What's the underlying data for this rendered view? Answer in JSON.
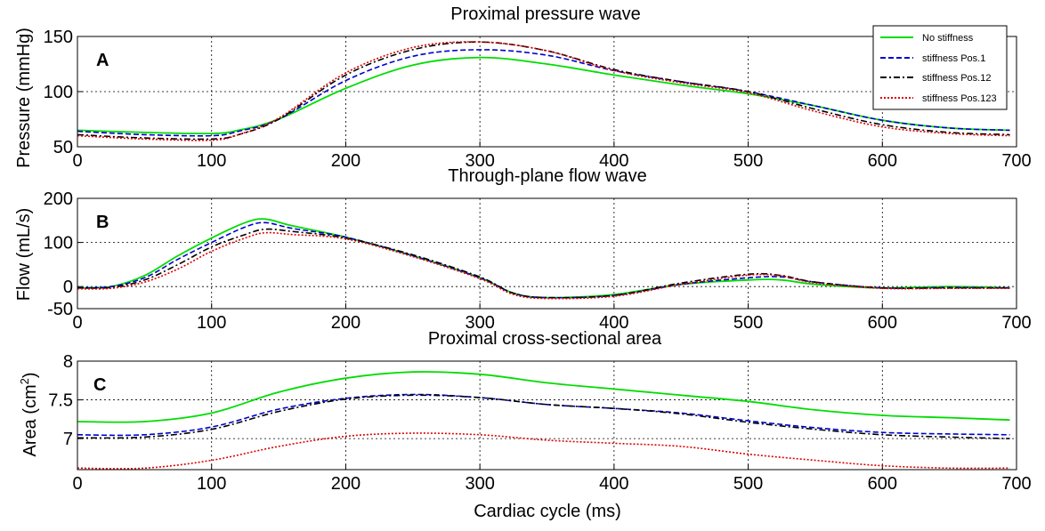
{
  "figure": {
    "panels": [
      {
        "id": "A",
        "letter": "A",
        "title": "Proximal pressure wave",
        "ylabel": "Pressure (mmHg)",
        "xlabel": ""
      },
      {
        "id": "B",
        "letter": "B",
        "title": "Through-plane flow wave",
        "ylabel": "Flow (mL/s)",
        "xlabel": ""
      },
      {
        "id": "C",
        "letter": "C",
        "title": "Proximal cross-sectional area",
        "ylabel": "Area (cm",
        "ylabel_sup": "2",
        "ylabel_end": ")",
        "xlabel": "Cardiac cycle (ms)"
      }
    ],
    "legend": [
      {
        "label": "No stiffness",
        "color": "#00dd00",
        "dash": "solid"
      },
      {
        "label": "stiffness Pos.1",
        "color": "#0000cc",
        "dash": "dashed"
      },
      {
        "label": "stiffness Pos.12",
        "color": "#000000",
        "dash": "dashdot"
      },
      {
        "label": "stiffness Pos.123",
        "color": "#dd0000",
        "dash": "dotted"
      }
    ]
  },
  "chart_data": [
    {
      "type": "line",
      "panel": "A",
      "title": "Proximal pressure wave",
      "xlabel": "",
      "ylabel": "Pressure (mmHg)",
      "xlim": [
        0,
        700
      ],
      "ylim": [
        50,
        150
      ],
      "xticks": [
        0,
        100,
        200,
        300,
        400,
        500,
        600,
        700
      ],
      "yticks": [
        50,
        100,
        150
      ],
      "ytick_labels": [
        "50",
        "100",
        "150"
      ],
      "xtick_labels": [
        "0",
        "100",
        "200",
        "300",
        "400",
        "500",
        "600",
        "700"
      ],
      "grid": true,
      "legend_position": "top-right",
      "x": [
        0,
        50,
        100,
        120,
        150,
        200,
        250,
        300,
        350,
        400,
        450,
        500,
        550,
        600,
        650,
        695
      ],
      "series": [
        {
          "name": "No stiffness",
          "color": "#00dd00",
          "dash": "solid",
          "values": [
            65,
            63,
            62,
            65,
            75,
            103,
            124,
            131,
            125,
            115,
            106,
            98,
            87,
            74,
            67,
            65
          ]
        },
        {
          "name": "stiffness Pos.1",
          "color": "#0000cc",
          "dash": "dashed",
          "values": [
            64,
            61,
            60,
            64,
            75,
            110,
            132,
            138,
            133,
            119,
            109,
            100,
            87,
            74,
            67,
            65
          ]
        },
        {
          "name": "stiffness Pos.12",
          "color": "#000000",
          "dash": "dashdot",
          "values": [
            61,
            58,
            57,
            61,
            75,
            115,
            138,
            145,
            137,
            120,
            109,
            100,
            84,
            70,
            63,
            61
          ]
        },
        {
          "name": "stiffness Pos.123",
          "color": "#dd0000",
          "dash": "dotted",
          "values": [
            60,
            57,
            56,
            61,
            76,
            117,
            140,
            145,
            137,
            119,
            108,
            99,
            82,
            68,
            62,
            60
          ]
        }
      ]
    },
    {
      "type": "line",
      "panel": "B",
      "title": "Through-plane flow wave",
      "xlabel": "",
      "ylabel": "Flow (mL/s)",
      "xlim": [
        0,
        700
      ],
      "ylim": [
        -50,
        200
      ],
      "xticks": [
        0,
        100,
        200,
        300,
        400,
        500,
        600,
        700
      ],
      "yticks": [
        -50,
        0,
        100,
        200
      ],
      "ytick_labels": [
        "-50",
        "0",
        "100",
        "200"
      ],
      "xtick_labels": [
        "0",
        "100",
        "200",
        "300",
        "400",
        "500",
        "600",
        "700"
      ],
      "grid": true,
      "x": [
        0,
        25,
        50,
        75,
        100,
        125,
        140,
        160,
        200,
        250,
        300,
        325,
        350,
        400,
        450,
        500,
        525,
        550,
        600,
        650,
        695
      ],
      "series": [
        {
          "name": "No stiffness",
          "color": "#00dd00",
          "dash": "solid",
          "values": [
            -3,
            0,
            25,
            70,
            110,
            145,
            153,
            138,
            112,
            70,
            20,
            -15,
            -25,
            -18,
            5,
            15,
            15,
            5,
            -3,
            0,
            -3
          ]
        },
        {
          "name": "stiffness Pos.1",
          "color": "#0000cc",
          "dash": "dashed",
          "values": [
            -3,
            0,
            20,
            62,
            100,
            135,
            145,
            132,
            112,
            70,
            20,
            -15,
            -25,
            -20,
            5,
            20,
            22,
            10,
            -3,
            -2,
            -3
          ]
        },
        {
          "name": "stiffness Pos.12",
          "color": "#000000",
          "dash": "dashdot",
          "values": [
            -3,
            -2,
            15,
            50,
            90,
            118,
            130,
            125,
            110,
            72,
            22,
            -15,
            -25,
            -20,
            8,
            28,
            25,
            10,
            -3,
            -3,
            -3
          ]
        },
        {
          "name": "stiffness Pos.123",
          "color": "#dd0000",
          "dash": "dotted",
          "values": [
            -5,
            -4,
            10,
            40,
            80,
            110,
            122,
            118,
            108,
            68,
            18,
            -18,
            -27,
            -22,
            5,
            26,
            24,
            8,
            -4,
            -4,
            -4
          ]
        }
      ]
    },
    {
      "type": "line",
      "panel": "C",
      "title": "Proximal cross-sectional area",
      "xlabel": "Cardiac cycle (ms)",
      "ylabel": "Area (cm2)",
      "xlim": [
        0,
        700
      ],
      "ylim": [
        6.6,
        8.0
      ],
      "xticks": [
        0,
        100,
        200,
        300,
        400,
        500,
        600,
        700
      ],
      "yticks": [
        7.0,
        7.5,
        8.0
      ],
      "ytick_labels": [
        "7",
        "7.5",
        "8"
      ],
      "xtick_labels": [
        "0",
        "100",
        "200",
        "300",
        "400",
        "500",
        "600",
        "700"
      ],
      "grid": true,
      "x": [
        0,
        50,
        100,
        150,
        200,
        250,
        300,
        350,
        400,
        450,
        500,
        550,
        600,
        650,
        695
      ],
      "series": [
        {
          "name": "No stiffness",
          "color": "#00dd00",
          "dash": "solid",
          "values": [
            7.22,
            7.22,
            7.33,
            7.6,
            7.78,
            7.86,
            7.83,
            7.72,
            7.64,
            7.56,
            7.48,
            7.37,
            7.3,
            7.27,
            7.24
          ]
        },
        {
          "name": "stiffness Pos.1",
          "color": "#0000cc",
          "dash": "dashed",
          "values": [
            7.05,
            7.05,
            7.15,
            7.38,
            7.52,
            7.57,
            7.53,
            7.44,
            7.39,
            7.33,
            7.23,
            7.14,
            7.08,
            7.06,
            7.05
          ]
        },
        {
          "name": "stiffness Pos.12",
          "color": "#000000",
          "dash": "dashdot",
          "values": [
            7.01,
            7.02,
            7.12,
            7.35,
            7.51,
            7.56,
            7.53,
            7.44,
            7.39,
            7.32,
            7.21,
            7.12,
            7.05,
            7.02,
            7.0
          ]
        },
        {
          "name": "stiffness Pos.123",
          "color": "#dd0000",
          "dash": "dotted",
          "values": [
            6.62,
            6.62,
            6.72,
            6.9,
            7.03,
            7.07,
            7.05,
            6.98,
            6.94,
            6.9,
            6.8,
            6.72,
            6.65,
            6.62,
            6.62
          ]
        }
      ]
    }
  ]
}
